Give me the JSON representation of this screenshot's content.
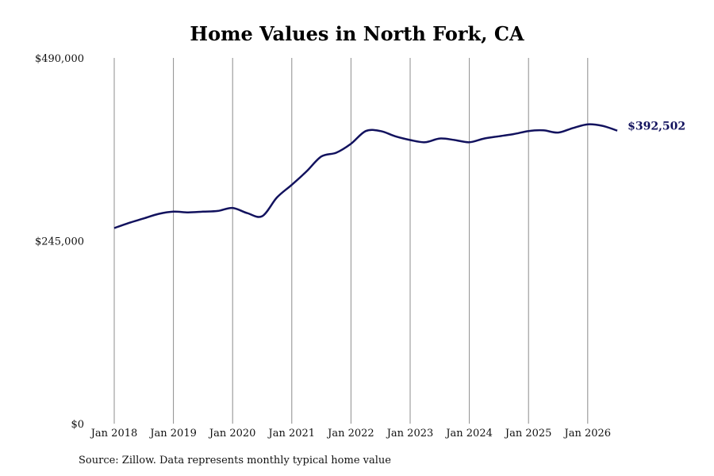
{
  "chart_data": {
    "type": "line",
    "title": "Home Values in North Fork, CA",
    "source": "Source: Zillow. Data represents monthly typical home value",
    "ylim": [
      0,
      490000
    ],
    "yticks": [
      {
        "value": 0,
        "label": "$0"
      },
      {
        "value": 245000,
        "label": "$245,000"
      },
      {
        "value": 490000,
        "label": "$490,000"
      }
    ],
    "xticks": [
      "Jan 2018",
      "Jan 2019",
      "Jan 2020",
      "Jan 2021",
      "Jan 2022",
      "Jan 2023",
      "Jan 2024",
      "Jan 2025",
      "Jan 2026"
    ],
    "grid": "vertical",
    "line_color": "#12125e",
    "end_label": "$392,502",
    "series": [
      {
        "x": [
          "2018-01",
          "2018-04",
          "2018-07",
          "2018-10",
          "2019-01",
          "2019-04",
          "2019-07",
          "2019-10",
          "2020-01",
          "2020-04",
          "2020-07",
          "2020-10",
          "2021-01",
          "2021-04",
          "2021-07",
          "2021-10",
          "2022-01",
          "2022-04",
          "2022-07",
          "2022-10",
          "2023-01",
          "2023-04",
          "2023-07",
          "2023-10",
          "2024-01",
          "2024-04",
          "2024-07",
          "2024-10",
          "2025-01",
          "2025-04",
          "2025-07",
          "2025-10",
          "2026-01",
          "2026-04",
          "2026-07"
        ],
        "values": [
          262000,
          269000,
          275000,
          281000,
          284000,
          283000,
          284000,
          285000,
          289000,
          282000,
          278000,
          303000,
          320000,
          338000,
          358000,
          363000,
          375000,
          392000,
          392000,
          385000,
          380000,
          377000,
          382000,
          380000,
          377000,
          382000,
          385000,
          388000,
          392000,
          393000,
          390000,
          396000,
          401000,
          399000,
          392502
        ]
      }
    ]
  }
}
